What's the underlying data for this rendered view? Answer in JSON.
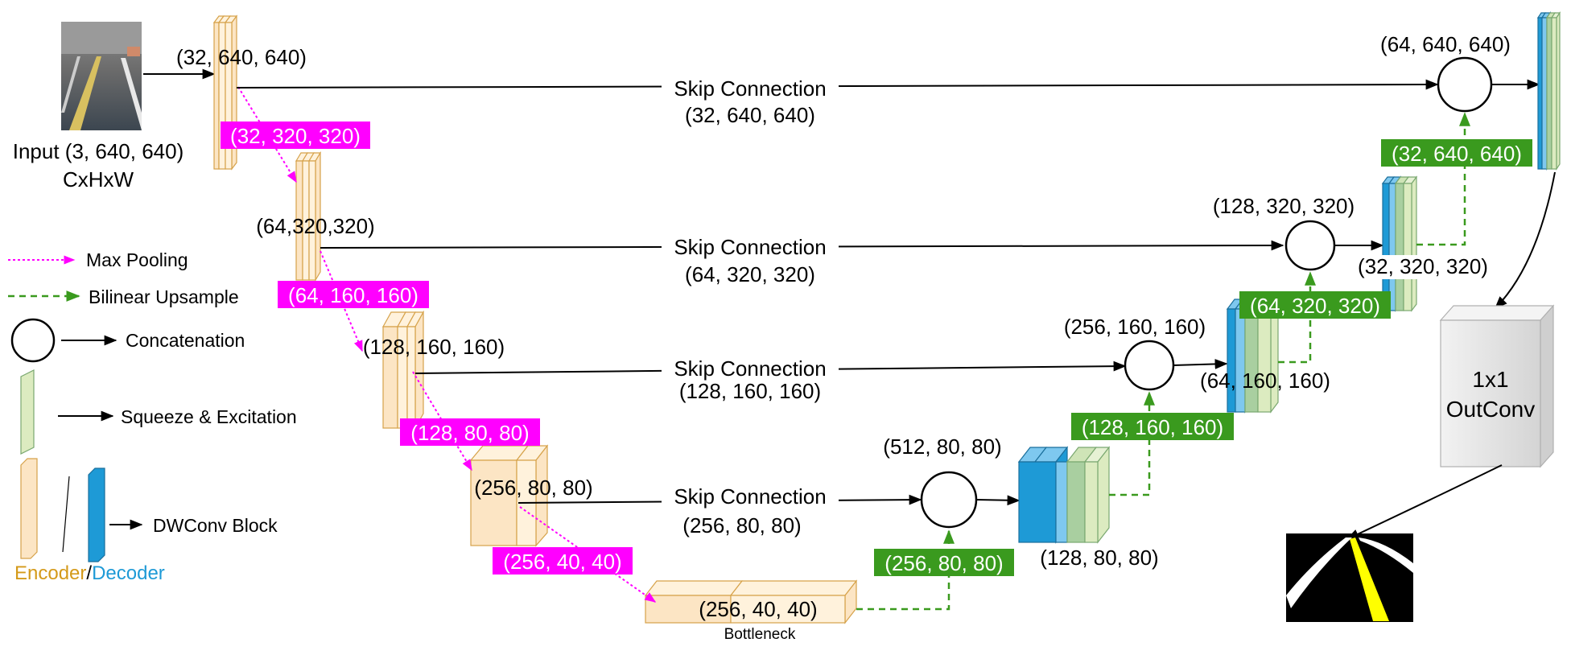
{
  "input": {
    "label": "Input (3, 640, 640)",
    "sublabel": "CxHxW"
  },
  "encoder": {
    "e1_shape": "(32, 640, 640)",
    "e2_shape": "(64,320,320)",
    "e3_shape": "(128, 160, 160)",
    "e4_shape": "(256, 80, 80)",
    "bottleneck_shape": "(256, 40, 40)",
    "bottleneck_label": "Bottleneck"
  },
  "pooling_badges": [
    "(32, 320, 320)",
    "(64, 160, 160)",
    "(128, 80, 80)",
    "(256, 40, 40)"
  ],
  "upsample_badges": [
    "(256, 80, 80)",
    "(128, 160, 160)",
    "(64, 320, 320)",
    "(32, 640, 640)"
  ],
  "skip_connections": [
    {
      "label": "Skip Connection",
      "shape": "(32, 640, 640)"
    },
    {
      "label": "Skip Connection",
      "shape": "(64, 320, 320)"
    },
    {
      "label": "Skip Connection",
      "shape": "(128, 160, 160)"
    },
    {
      "label": "Skip Connection",
      "shape": "(256, 80, 80)"
    }
  ],
  "concat_shapes": [
    "(512, 80, 80)",
    "(256, 160, 160)",
    "(128, 320, 320)",
    "(64, 640, 640)"
  ],
  "decoder_shapes": [
    "(128, 80, 80)",
    "(64, 160, 160)",
    "(32, 320, 320)"
  ],
  "outconv": {
    "line1": "1x1",
    "line2": "OutConv"
  },
  "legend": {
    "max_pooling": "Max Pooling",
    "bilinear_upsample": "Bilinear Upsample",
    "concatenation": "Concatenation",
    "squeeze_excitation": "Squeeze & Excitation",
    "dwconv_block": "DWConv Block",
    "encoder_word": "Encoder",
    "slash": "/",
    "decoder_word": "Decoder"
  },
  "colors": {
    "encoder_face": "#fce5c4",
    "encoder_light": "#fff2dc",
    "encoder_stroke": "#d6a24a",
    "decoder_blue": "#1e9ad6",
    "decoder_blue_light": "#7ec8ef",
    "se_green": "#dcebc0",
    "se_green_dark": "#a9cfa0",
    "pooling_magenta": "#ff00ff",
    "upsample_green": "#3a9a1e",
    "encoder_text": "#d49a1a",
    "decoder_text": "#1e9ad6"
  }
}
